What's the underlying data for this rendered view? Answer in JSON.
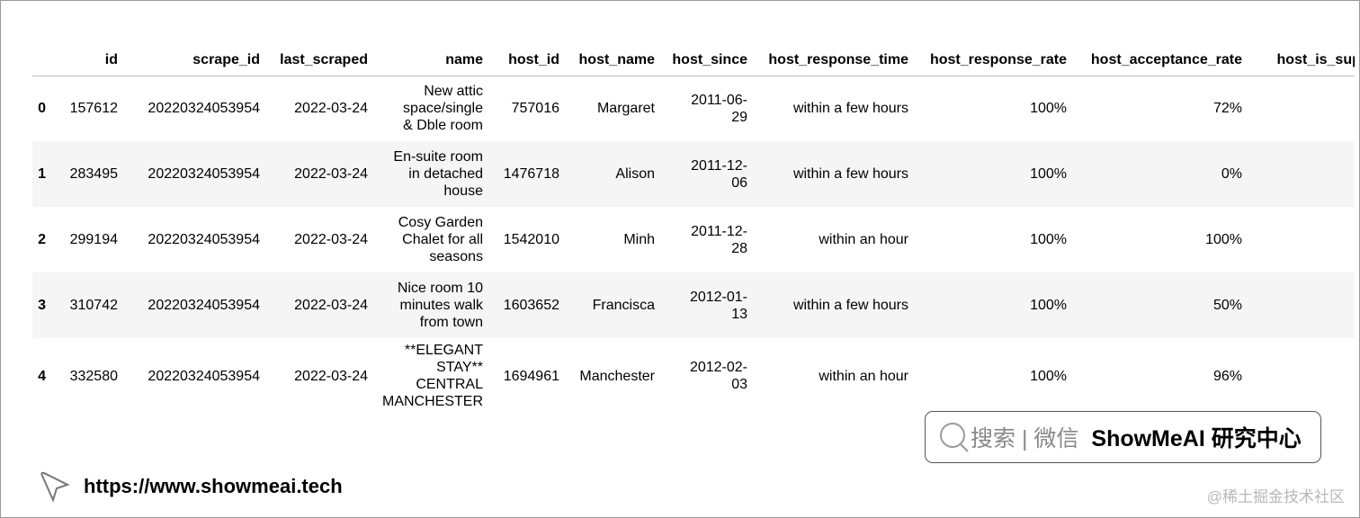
{
  "table": {
    "columns": [
      "",
      "id",
      "scrape_id",
      "last_scraped",
      "name",
      "host_id",
      "host_name",
      "host_since",
      "host_response_time",
      "host_response_rate",
      "host_acceptance_rate",
      "host_is_super"
    ],
    "rows": [
      [
        "0",
        "157612",
        "20220324053954",
        "2022-03-24",
        "New attic\nspace/single\n& Dble room",
        "757016",
        "Margaret",
        "2011-06-\n29",
        "within a few hours",
        "100%",
        "72%",
        ""
      ],
      [
        "1",
        "283495",
        "20220324053954",
        "2022-03-24",
        "En-suite room\nin detached\nhouse",
        "1476718",
        "Alison",
        "2011-12-\n06",
        "within a few hours",
        "100%",
        "0%",
        ""
      ],
      [
        "2",
        "299194",
        "20220324053954",
        "2022-03-24",
        "Cosy Garden\nChalet for all\nseasons",
        "1542010",
        "Minh",
        "2011-12-\n28",
        "within an hour",
        "100%",
        "100%",
        ""
      ],
      [
        "3",
        "310742",
        "20220324053954",
        "2022-03-24",
        "Nice room 10\nminutes walk\nfrom town",
        "1603652",
        "Francisca",
        "2012-01-\n13",
        "within a few hours",
        "100%",
        "50%",
        ""
      ],
      [
        "4",
        "332580",
        "20220324053954",
        "2022-03-24",
        "**ELEGANT\nSTAY**\nCENTRAL\nMANCHESTER",
        "1694961",
        "Manchester",
        "2012-02-\n03",
        "within an hour",
        "100%",
        "96%",
        ""
      ]
    ]
  },
  "footer": {
    "search_text": "搜索 | 微信",
    "brand": "ShowMeAI 研究中心",
    "url": "https://www.showmeai.tech",
    "watermark": "@稀土掘金技术社区"
  }
}
